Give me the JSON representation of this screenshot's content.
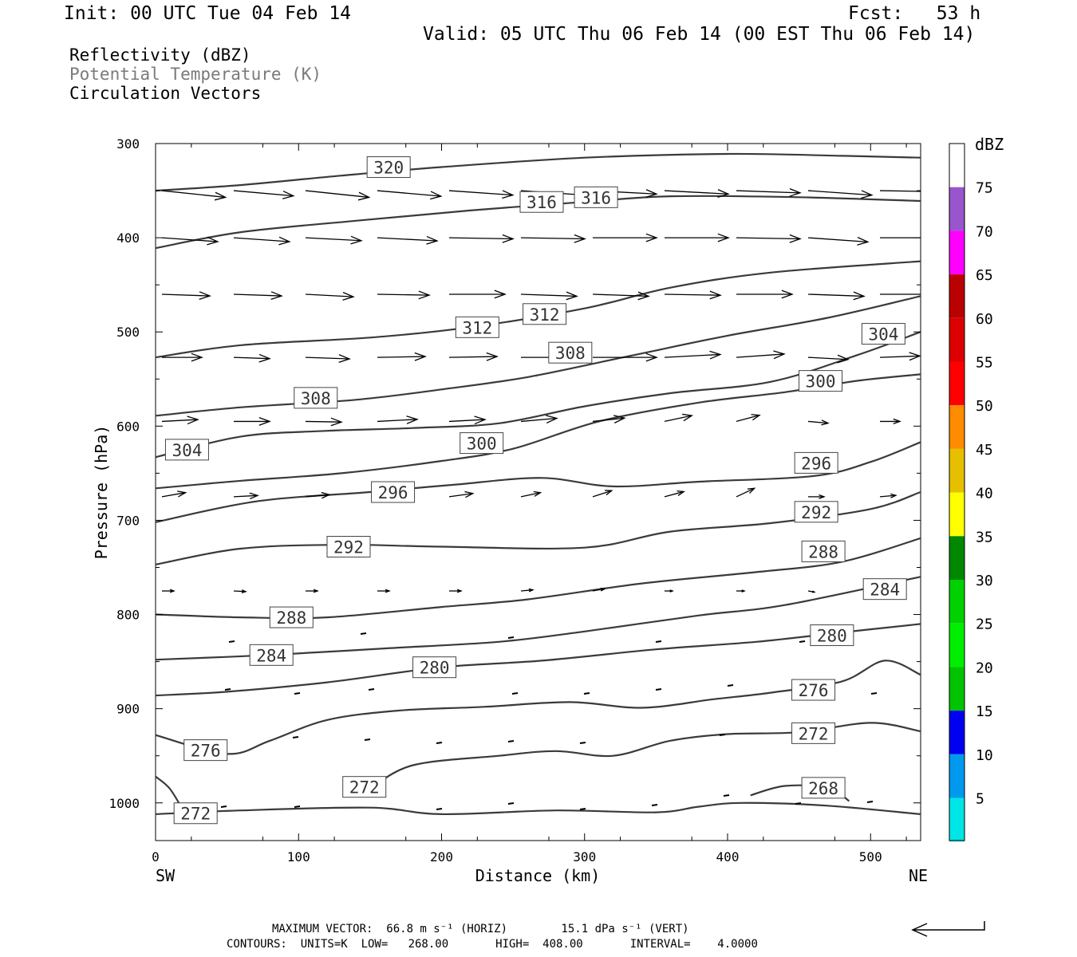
{
  "header": {
    "init": "Init: 00 UTC Tue 04 Feb 14",
    "fcst": "Fcst:   53 h",
    "valid": "Valid: 05 UTC Thu 06 Feb 14 (00 EST Thu 06 Feb 14)"
  },
  "fields": {
    "reflectivity": "Reflectivity (dBZ)",
    "theta": "Potential Temperature (K)",
    "vectors": "Circulation Vectors"
  },
  "footer": {
    "max_vector": "MAXIMUM VECTOR:  66.8 m s⁻¹ (HORIZ)        15.1 dPa s⁻¹ (VERT)",
    "contours": "CONTOURS:  UNITS=K  LOW=   268.00       HIGH=  408.00       INTERVAL=    4.0000"
  },
  "colors": {
    "contour": "#3a3a3a",
    "vector": "#000000",
    "label_border": "#444444"
  },
  "chart_data": {
    "type": "cross-section",
    "xlabel": "Distance (km)",
    "ylabel": "Pressure (hPa)",
    "xlim": [
      0,
      535
    ],
    "ylim": [
      1040,
      300
    ],
    "x_ticks": [
      0,
      100,
      200,
      300,
      400,
      500
    ],
    "y_ticks": [
      300,
      400,
      500,
      600,
      700,
      800,
      900,
      1000
    ],
    "end_labels": {
      "left": "SW",
      "right": "NE"
    },
    "colorbar": {
      "unit": "dBZ",
      "levels": [
        5,
        10,
        15,
        20,
        25,
        30,
        35,
        40,
        45,
        50,
        55,
        60,
        65,
        70,
        75
      ],
      "colors": [
        "#00e5e5",
        "#0099ee",
        "#0000f0",
        "#00c400",
        "#00ee00",
        "#00d100",
        "#008800",
        "#ffff00",
        "#e6c000",
        "#ff8c00",
        "#ff0000",
        "#dd0000",
        "#bb0000",
        "#ff00ff",
        "#9955cc"
      ]
    },
    "contour_interval": 4,
    "contours": [
      {
        "level": 320,
        "points": [
          [
            0,
            350
          ],
          [
            60,
            344
          ],
          [
            130,
            334
          ],
          [
            200,
            325
          ],
          [
            300,
            315
          ],
          [
            400,
            311
          ],
          [
            480,
            313
          ],
          [
            535,
            315
          ]
        ],
        "labels": [
          [
            163,
            325
          ]
        ]
      },
      {
        "level": 316,
        "points": [
          [
            0,
            411
          ],
          [
            60,
            394
          ],
          [
            140,
            382
          ],
          [
            220,
            371
          ],
          [
            300,
            362
          ],
          [
            360,
            356
          ],
          [
            450,
            357
          ],
          [
            535,
            361
          ]
        ],
        "labels": [
          [
            270,
            362
          ],
          [
            308,
            357
          ]
        ]
      },
      {
        "level": 312,
        "points": [
          [
            0,
            527
          ],
          [
            60,
            514
          ],
          [
            150,
            506
          ],
          [
            220,
            495
          ],
          [
            300,
            475
          ],
          [
            360,
            453
          ],
          [
            430,
            437
          ],
          [
            535,
            425
          ]
        ],
        "labels": [
          [
            225,
            495
          ],
          [
            272,
            481
          ]
        ]
      },
      {
        "level": 308,
        "points": [
          [
            0,
            589
          ],
          [
            60,
            580
          ],
          [
            140,
            572
          ],
          [
            200,
            561
          ],
          [
            260,
            548
          ],
          [
            330,
            526
          ],
          [
            400,
            504
          ],
          [
            470,
            485
          ],
          [
            535,
            462
          ]
        ],
        "labels": [
          [
            112,
            570
          ],
          [
            290,
            522
          ]
        ]
      },
      {
        "level": 304,
        "points": [
          [
            0,
            633
          ],
          [
            60,
            611
          ],
          [
            120,
            605
          ],
          [
            180,
            602
          ],
          [
            240,
            597
          ],
          [
            300,
            579
          ],
          [
            360,
            565
          ],
          [
            430,
            553
          ],
          [
            490,
            525
          ],
          [
            535,
            500
          ]
        ],
        "labels": [
          [
            22,
            625
          ],
          [
            509,
            502
          ]
        ]
      },
      {
        "level": 300,
        "points": [
          [
            0,
            666
          ],
          [
            60,
            658
          ],
          [
            130,
            650
          ],
          [
            200,
            637
          ],
          [
            250,
            624
          ],
          [
            310,
            595
          ],
          [
            380,
            575
          ],
          [
            440,
            564
          ],
          [
            490,
            552
          ],
          [
            535,
            545
          ]
        ],
        "labels": [
          [
            228,
            618
          ],
          [
            465,
            552
          ]
        ]
      },
      {
        "level": 296,
        "points": [
          [
            0,
            702
          ],
          [
            70,
            680
          ],
          [
            150,
            670
          ],
          [
            210,
            662
          ],
          [
            270,
            655
          ],
          [
            320,
            664
          ],
          [
            380,
            659
          ],
          [
            460,
            653
          ],
          [
            500,
            638
          ],
          [
            535,
            617
          ]
        ],
        "labels": [
          [
            166,
            670
          ],
          [
            462,
            639
          ]
        ]
      },
      {
        "level": 292,
        "points": [
          [
            0,
            747
          ],
          [
            60,
            730
          ],
          [
            130,
            726
          ],
          [
            200,
            728
          ],
          [
            300,
            729
          ],
          [
            360,
            712
          ],
          [
            430,
            703
          ],
          [
            500,
            688
          ],
          [
            535,
            670
          ]
        ],
        "labels": [
          [
            135,
            728
          ],
          [
            462,
            691
          ]
        ]
      },
      {
        "level": 288,
        "points": [
          [
            0,
            800
          ],
          [
            60,
            803
          ],
          [
            120,
            803
          ],
          [
            200,
            792
          ],
          [
            260,
            784
          ],
          [
            340,
            767
          ],
          [
            420,
            755
          ],
          [
            480,
            744
          ],
          [
            535,
            719
          ]
        ],
        "labels": [
          [
            95,
            803
          ],
          [
            467,
            733
          ]
        ]
      },
      {
        "level": 284,
        "points": [
          [
            0,
            848
          ],
          [
            80,
            843
          ],
          [
            160,
            836
          ],
          [
            240,
            829
          ],
          [
            300,
            818
          ],
          [
            380,
            801
          ],
          [
            440,
            790
          ],
          [
            535,
            760
          ]
        ],
        "labels": [
          [
            81,
            843
          ],
          [
            510,
            773
          ]
        ]
      },
      {
        "level": 280,
        "points": [
          [
            0,
            886
          ],
          [
            50,
            882
          ],
          [
            120,
            872
          ],
          [
            200,
            856
          ],
          [
            270,
            849
          ],
          [
            350,
            837
          ],
          [
            420,
            829
          ],
          [
            480,
            819
          ],
          [
            535,
            810
          ]
        ],
        "labels": [
          [
            195,
            856
          ],
          [
            473,
            822
          ]
        ]
      },
      {
        "level": 276,
        "points": [
          [
            0,
            928
          ],
          [
            50,
            948
          ],
          [
            80,
            934
          ],
          [
            120,
            912
          ],
          [
            170,
            902
          ],
          [
            230,
            898
          ],
          [
            290,
            893
          ],
          [
            340,
            899
          ],
          [
            390,
            890
          ],
          [
            430,
            883
          ],
          [
            480,
            871
          ],
          [
            510,
            849
          ],
          [
            535,
            864
          ]
        ],
        "labels": [
          [
            35,
            944
          ],
          [
            460,
            880
          ]
        ]
      },
      {
        "level": 272,
        "points": [
          [
            150,
            985
          ],
          [
            180,
            960
          ],
          [
            240,
            950
          ],
          [
            280,
            945
          ],
          [
            320,
            950
          ],
          [
            360,
            934
          ],
          [
            400,
            927
          ],
          [
            450,
            925
          ],
          [
            500,
            915
          ],
          [
            535,
            924
          ]
        ],
        "labels": [
          [
            146,
            983
          ],
          [
            460,
            926
          ]
        ]
      },
      {
        "level": 272,
        "points": [
          [
            0,
            972
          ],
          [
            10,
            985
          ],
          [
            20,
            1010
          ]
        ],
        "labels": [
          [
            28,
            1011
          ]
        ]
      },
      {
        "level": 268,
        "points": [
          [
            0,
            1012
          ],
          [
            60,
            1008
          ],
          [
            150,
            1005
          ],
          [
            200,
            1012
          ],
          [
            280,
            1008
          ],
          [
            350,
            1010
          ],
          [
            380,
            1004
          ],
          [
            410,
            1000
          ],
          [
            470,
            1003
          ],
          [
            535,
            1012
          ]
        ],
        "labels": []
      },
      {
        "level": 268,
        "points": [
          [
            416,
            992
          ],
          [
            440,
            982
          ],
          [
            470,
            984
          ],
          [
            485,
            998
          ]
        ],
        "labels": [
          [
            467,
            984
          ]
        ]
      }
    ],
    "max_vector": {
      "horiz": 66.8,
      "horiz_unit": "m s⁻¹",
      "vert": 15.1,
      "vert_unit": "dPa s⁻¹"
    },
    "contour_summary": {
      "units": "K",
      "low": 268.0,
      "high": 408.0,
      "interval": 4.0
    }
  }
}
